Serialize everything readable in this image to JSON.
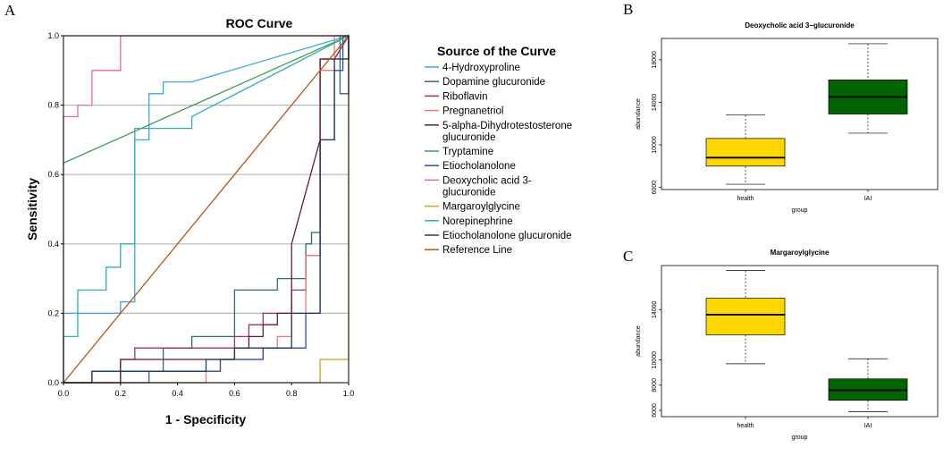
{
  "panels": {
    "a": "A",
    "b": "B",
    "c": "C"
  },
  "roc": {
    "title": "ROC Curve",
    "xlabel": "1 - Specificity",
    "ylabel": "Sensitivity",
    "xticks": [
      "0.0",
      "0.2",
      "0.4",
      "0.6",
      "0.8",
      "1.0"
    ],
    "yticks": [
      "0.0",
      "0.2",
      "0.4",
      "0.6",
      "0.8",
      "1.0"
    ],
    "legend_title": "Source of the Curve"
  },
  "chart_data": [
    {
      "type": "line",
      "title": "ROC Curve",
      "xlabel": "1 - Specificity",
      "ylabel": "Sensitivity",
      "xlim": [
        0,
        1
      ],
      "ylim": [
        0,
        1
      ],
      "grid": "horizontal",
      "legend_position": "right",
      "series": [
        {
          "name": "4-Hydroxyproline",
          "lines": [
            "4-Hydroxyproline"
          ],
          "color": "#3aa9dc",
          "points": [
            [
              0,
              0
            ],
            [
              0,
              0.2
            ],
            [
              0.2,
              0.2
            ],
            [
              0.2,
              0.233
            ],
            [
              0.25,
              0.233
            ],
            [
              0.25,
              0.7
            ],
            [
              0.3,
              0.7
            ],
            [
              0.3,
              0.833
            ],
            [
              0.35,
              0.833
            ],
            [
              0.35,
              0.867
            ],
            [
              0.45,
              0.867
            ],
            [
              1,
              1
            ]
          ]
        },
        {
          "name": "Dopamine glucuronide",
          "lines": [
            "Dopamine glucuronide"
          ],
          "color": "#2b6f6a",
          "points": [
            [
              0,
              0
            ],
            [
              0.3,
              0
            ],
            [
              0.3,
              0.033
            ],
            [
              0.35,
              0.033
            ],
            [
              0.35,
              0.1
            ],
            [
              0.45,
              0.1
            ],
            [
              0.45,
              0.133
            ],
            [
              0.6,
              0.133
            ],
            [
              0.6,
              0.267
            ],
            [
              0.75,
              0.267
            ],
            [
              0.75,
              0.3
            ],
            [
              0.85,
              0.3
            ],
            [
              0.85,
              0.4
            ],
            [
              0.87,
              0.4
            ],
            [
              0.87,
              0.433
            ],
            [
              0.9,
              0.433
            ],
            [
              0.9,
              0.933
            ],
            [
              0.95,
              0.933
            ],
            [
              1,
              1
            ],
            [
              1,
              0.833
            ],
            [
              0.97,
              0.833
            ],
            [
              0.97,
              1
            ]
          ]
        },
        {
          "name": "Riboflavin",
          "lines": [
            "Riboflavin"
          ],
          "color": "#a0306b",
          "points": [
            [
              0,
              0
            ],
            [
              0.2,
              0
            ],
            [
              0.2,
              0.067
            ],
            [
              0.25,
              0.067
            ],
            [
              0.25,
              0.1
            ],
            [
              0.6,
              0.1
            ],
            [
              0.6,
              0.133
            ],
            [
              0.65,
              0.133
            ],
            [
              0.65,
              0.167
            ],
            [
              0.7,
              0.167
            ],
            [
              0.7,
              0.2
            ],
            [
              0.8,
              0.2
            ],
            [
              0.8,
              0.267
            ],
            [
              0.85,
              0.267
            ],
            [
              0.85,
              0.367
            ],
            [
              0.9,
              0.367
            ],
            [
              0.9,
              0.933
            ],
            [
              0.95,
              0.933
            ],
            [
              1,
              1
            ]
          ]
        },
        {
          "name": "Pregnanetriol",
          "lines": [
            "Pregnanetriol"
          ],
          "color": "#f07a74",
          "points": [
            [
              0,
              0
            ],
            [
              0.5,
              0
            ],
            [
              0.5,
              0.033
            ],
            [
              0.55,
              0.033
            ],
            [
              0.55,
              0.067
            ],
            [
              0.7,
              0.067
            ],
            [
              0.7,
              0.1
            ],
            [
              0.75,
              0.1
            ],
            [
              0.75,
              0.133
            ],
            [
              0.8,
              0.133
            ],
            [
              0.8,
              0.2
            ],
            [
              0.85,
              0.2
            ],
            [
              0.85,
              0.367
            ],
            [
              0.9,
              0.367
            ],
            [
              0.9,
              0.9
            ],
            [
              0.95,
              0.9
            ],
            [
              0.95,
              1
            ],
            [
              1,
              1
            ]
          ]
        },
        {
          "name": "5-alpha-Dihydrotestosterone glucuronide",
          "lines": [
            "5-alpha-Dihydrotestosterone",
            "glucuronide"
          ],
          "color": "#6b1b2f",
          "points": [
            [
              0,
              0
            ],
            [
              0.2,
              0
            ],
            [
              0.2,
              0.067
            ],
            [
              0.6,
              0.067
            ],
            [
              0.6,
              0.1
            ],
            [
              0.65,
              0.1
            ],
            [
              0.65,
              0.133
            ],
            [
              0.7,
              0.133
            ],
            [
              0.7,
              0.167
            ],
            [
              0.75,
              0.167
            ],
            [
              0.75,
              0.2
            ],
            [
              0.8,
              0.2
            ],
            [
              0.8,
              0.4
            ],
            [
              0.9,
              0.7
            ],
            [
              0.9,
              0.933
            ],
            [
              1,
              0.933
            ],
            [
              1,
              1
            ]
          ]
        },
        {
          "name": "Tryptamine",
          "lines": [
            "Tryptamine"
          ],
          "color": "#3e9a56",
          "points": [
            [
              0,
              0.633
            ],
            [
              1,
              1
            ]
          ]
        },
        {
          "name": "Etiocholanolone",
          "lines": [
            "Etiocholanolone"
          ],
          "color": "#2d4fa8",
          "points": [
            [
              0,
              0
            ],
            [
              0.1,
              0
            ],
            [
              0.1,
              0.033
            ],
            [
              0.55,
              0.033
            ],
            [
              0.55,
              0.067
            ],
            [
              0.7,
              0.067
            ],
            [
              0.7,
              0.1
            ],
            [
              0.85,
              0.1
            ],
            [
              0.85,
              0.2
            ],
            [
              0.9,
              0.2
            ],
            [
              0.9,
              0.7
            ],
            [
              0.95,
              0.7
            ],
            [
              0.95,
              0.9
            ],
            [
              0.98,
              0.9
            ],
            [
              0.98,
              1
            ],
            [
              1,
              1
            ]
          ]
        },
        {
          "name": "Deoxycholic acid 3-glucuronide",
          "lines": [
            "Deoxycholic acid 3-",
            "glucuronide"
          ],
          "color": "#ea6a9d",
          "points": [
            [
              0,
              0
            ],
            [
              0,
              0.767
            ],
            [
              0.05,
              0.767
            ],
            [
              0.05,
              0.8
            ],
            [
              0.1,
              0.8
            ],
            [
              0.1,
              0.9
            ],
            [
              0.2,
              0.9
            ],
            [
              0.2,
              1
            ],
            [
              1,
              1
            ]
          ]
        },
        {
          "name": "Margaroylglycine",
          "lines": [
            "Margaroylglycine"
          ],
          "color": "#c9a227",
          "points": [
            [
              0,
              0
            ],
            [
              0.9,
              0
            ],
            [
              0.9,
              0.067
            ],
            [
              1,
              0.067
            ],
            [
              1,
              1
            ]
          ]
        },
        {
          "name": "Norepinephrine",
          "lines": [
            "Norepinephrine"
          ],
          "color": "#2fb0b0",
          "points": [
            [
              0,
              0
            ],
            [
              0,
              0.133
            ],
            [
              0.05,
              0.133
            ],
            [
              0.05,
              0.267
            ],
            [
              0.15,
              0.267
            ],
            [
              0.15,
              0.333
            ],
            [
              0.2,
              0.333
            ],
            [
              0.2,
              0.4
            ],
            [
              0.25,
              0.4
            ],
            [
              0.25,
              0.733
            ],
            [
              0.45,
              0.733
            ],
            [
              0.45,
              0.767
            ],
            [
              1,
              1
            ]
          ]
        },
        {
          "name": "Etiocholanolone glucuronide",
          "lines": [
            "Etiocholanolone glucuronide"
          ],
          "color": "#1f3a5c",
          "points": [
            [
              0,
              0
            ],
            [
              0.1,
              0
            ],
            [
              0.1,
              0.033
            ],
            [
              0.5,
              0.033
            ],
            [
              0.5,
              0.067
            ],
            [
              0.6,
              0.067
            ],
            [
              0.6,
              0.1
            ],
            [
              0.8,
              0.1
            ],
            [
              0.8,
              0.2
            ],
            [
              0.9,
              0.2
            ],
            [
              0.9,
              0.7
            ],
            [
              0.95,
              0.7
            ],
            [
              0.95,
              0.933
            ],
            [
              1,
              0.933
            ],
            [
              1,
              1
            ]
          ]
        },
        {
          "name": "Reference Line",
          "lines": [
            "Reference Line"
          ],
          "color": "#b5561d",
          "points": [
            [
              0,
              0
            ],
            [
              1,
              1
            ]
          ]
        }
      ]
    },
    {
      "type": "box",
      "title": "Deoxycholic acid 3−glucuronide",
      "xlabel": "group",
      "ylabel": "abundance",
      "ylim": [
        5800,
        20000
      ],
      "yticks": [
        "6000",
        "10000",
        "14000",
        "18000"
      ],
      "categories": [
        "health",
        "IAI"
      ],
      "boxes": [
        {
          "group": "health",
          "color": "#ffd700",
          "min": 6300,
          "q1": 8000,
          "median": 8800,
          "q3": 10600,
          "max": 12800
        },
        {
          "group": "IAI",
          "color": "#006400",
          "min": 11100,
          "q1": 12900,
          "median": 14500,
          "q3": 16100,
          "max": 19500
        }
      ]
    },
    {
      "type": "box",
      "title": "Margaroylglycine",
      "xlabel": "group",
      "ylabel": "abundance",
      "ylim": [
        5500,
        17500
      ],
      "yticks": [
        "6000",
        "8000",
        "10000",
        "14000"
      ],
      "categories": [
        "health",
        "IAI"
      ],
      "boxes": [
        {
          "group": "health",
          "color": "#ffd700",
          "min": 9700,
          "q1": 12000,
          "median": 13600,
          "q3": 14900,
          "max": 17100
        },
        {
          "group": "IAI",
          "color": "#006400",
          "min": 5900,
          "q1": 6800,
          "median": 7600,
          "q3": 8500,
          "max": 10100
        }
      ]
    }
  ]
}
